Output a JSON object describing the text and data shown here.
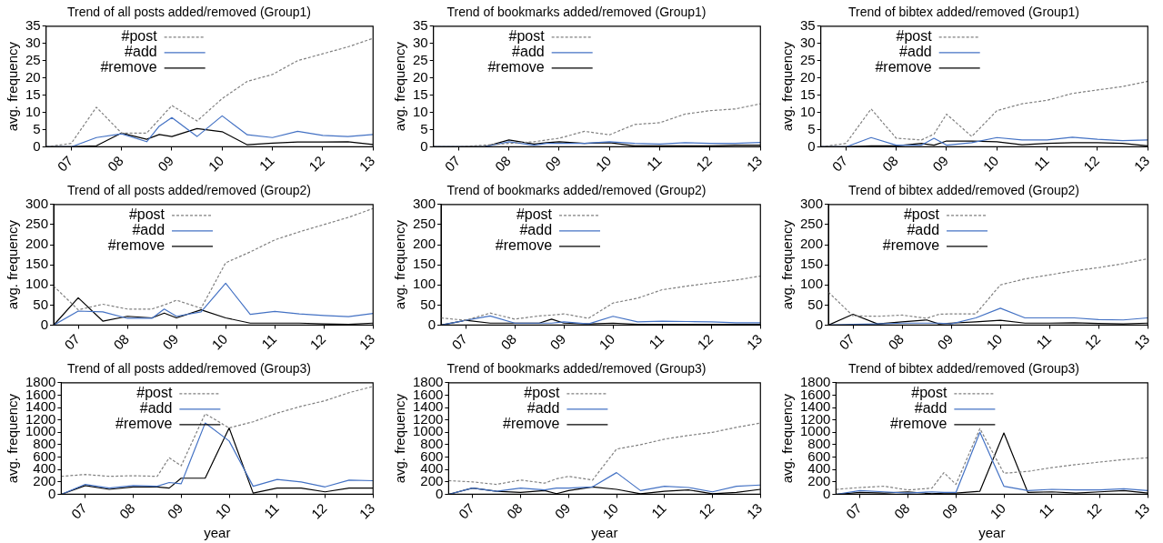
{
  "chart_data": [
    {
      "type": "line",
      "title": "Trend of all posts added/removed (Group1)",
      "ylabel": "avg. frequency",
      "legend": "top left",
      "grid": false,
      "x": [
        2006.5,
        2007,
        2007.5,
        2008,
        2008.5,
        2008.75,
        2009,
        2009.5,
        2010,
        2010.5,
        2011,
        2011.5,
        2012,
        2012.5,
        2013
      ],
      "xlim": [
        2006.5,
        2013
      ],
      "xticks": [
        {
          "value": 2007,
          "label": "07"
        },
        {
          "value": 2008,
          "label": "08"
        },
        {
          "value": 2009,
          "label": "09"
        },
        {
          "value": 2010,
          "label": "10"
        },
        {
          "value": 2011,
          "label": "11"
        },
        {
          "value": 2012,
          "label": "12"
        },
        {
          "value": 2013,
          "label": "13"
        }
      ],
      "ylim": [
        0,
        35
      ],
      "yticks": [
        0,
        5,
        10,
        15,
        20,
        25,
        30,
        35
      ],
      "series": [
        {
          "name": "#post",
          "color": "#808080",
          "line_style": "dashed",
          "values": [
            0,
            1,
            11.5,
            4,
            4,
            8,
            12,
            7.5,
            14,
            19,
            21,
            25,
            27,
            29,
            31.5
          ]
        },
        {
          "name": "#add",
          "color": "#4472c4",
          "line_style": "solid",
          "values": [
            0,
            0,
            2.7,
            3.8,
            1.5,
            6,
            8.5,
            3,
            9,
            3.5,
            2.7,
            4.5,
            3.3,
            3,
            3.6
          ]
        },
        {
          "name": "#remove",
          "color": "#000000",
          "line_style": "solid",
          "values": [
            0,
            0,
            0.3,
            4,
            2.2,
            3.6,
            3,
            5.3,
            4.4,
            0.6,
            1.1,
            1.4,
            1.4,
            1.5,
            0.7
          ]
        }
      ]
    },
    {
      "type": "line",
      "title": "Trend of bookmarks added/removed (Group1)",
      "ylabel": "avg. frequency",
      "legend": "top left",
      "grid": false,
      "x": [
        2006.5,
        2007,
        2007.5,
        2008,
        2008.5,
        2008.75,
        2009,
        2009.5,
        2010,
        2010.5,
        2011,
        2011.5,
        2012,
        2012.5,
        2013
      ],
      "xlim": [
        2006.5,
        2013
      ],
      "xticks": [
        {
          "value": 2007,
          "label": "07"
        },
        {
          "value": 2008,
          "label": "08"
        },
        {
          "value": 2009,
          "label": "09"
        },
        {
          "value": 2010,
          "label": "10"
        },
        {
          "value": 2011,
          "label": "11"
        },
        {
          "value": 2012,
          "label": "12"
        },
        {
          "value": 2013,
          "label": "13"
        }
      ],
      "ylim": [
        0,
        35
      ],
      "yticks": [
        0,
        5,
        10,
        15,
        20,
        25,
        30,
        35
      ],
      "series": [
        {
          "name": "#post",
          "color": "#808080",
          "line_style": "dashed",
          "values": [
            0,
            0,
            0.5,
            1,
            1.5,
            2,
            2.5,
            4.5,
            3.5,
            6.5,
            7,
            9.5,
            10.5,
            11,
            12.5
          ]
        },
        {
          "name": "#add",
          "color": "#4472c4",
          "line_style": "solid",
          "values": [
            0,
            0,
            0,
            1.5,
            0.5,
            1,
            1,
            1,
            1.5,
            1,
            0.8,
            1.2,
            1,
            1,
            1.3
          ]
        },
        {
          "name": "#remove",
          "color": "#000000",
          "line_style": "solid",
          "values": [
            0,
            0,
            0,
            2,
            0.8,
            1.2,
            1.5,
            1,
            1.2,
            0.3,
            0.3,
            0.3,
            0.3,
            0.5,
            0.5
          ]
        }
      ]
    },
    {
      "type": "line",
      "title": "Trend of bibtex added/removed (Group1)",
      "ylabel": "avg. frequency",
      "legend": "top left",
      "grid": false,
      "x": [
        2006.5,
        2007,
        2007.5,
        2008,
        2008.5,
        2008.75,
        2009,
        2009.5,
        2010,
        2010.5,
        2011,
        2011.5,
        2012,
        2012.5,
        2013
      ],
      "xlim": [
        2006.5,
        2013
      ],
      "xticks": [
        {
          "value": 2007,
          "label": "07"
        },
        {
          "value": 2008,
          "label": "08"
        },
        {
          "value": 2009,
          "label": "09"
        },
        {
          "value": 2010,
          "label": "10"
        },
        {
          "value": 2011,
          "label": "11"
        },
        {
          "value": 2012,
          "label": "12"
        },
        {
          "value": 2013,
          "label": "13"
        }
      ],
      "ylim": [
        0,
        35
      ],
      "yticks": [
        0,
        5,
        10,
        15,
        20,
        25,
        30,
        35
      ],
      "series": [
        {
          "name": "#post",
          "color": "#808080",
          "line_style": "dashed",
          "values": [
            0,
            1,
            11,
            2.5,
            2,
            3.7,
            9.5,
            3,
            10.5,
            12.5,
            13.5,
            15.5,
            16.5,
            17.5,
            19
          ]
        },
        {
          "name": "#add",
          "color": "#4472c4",
          "line_style": "solid",
          "values": [
            0,
            0,
            2.7,
            0.5,
            0.5,
            2.5,
            0.5,
            1.2,
            2.7,
            2,
            2,
            2.8,
            2.2,
            1.8,
            2
          ]
        },
        {
          "name": "#remove",
          "color": "#000000",
          "line_style": "solid",
          "values": [
            0,
            0,
            0.3,
            0.3,
            1,
            0.5,
            1.7,
            1.7,
            1.5,
            0.6,
            1,
            1.2,
            1.2,
            1,
            0.3
          ]
        }
      ]
    },
    {
      "type": "line",
      "title": "Trend of all posts added/removed (Group2)",
      "ylabel": "avg. frequency",
      "legend": "top left",
      "grid": false,
      "x": [
        2006.5,
        2007,
        2007.5,
        2008,
        2008.5,
        2008.75,
        2009,
        2009.5,
        2010,
        2010.5,
        2011,
        2011.5,
        2012,
        2012.5,
        2013
      ],
      "xlim": [
        2006.5,
        2013
      ],
      "xticks": [
        {
          "value": 2007,
          "label": "07"
        },
        {
          "value": 2008,
          "label": "08"
        },
        {
          "value": 2009,
          "label": "09"
        },
        {
          "value": 2010,
          "label": "10"
        },
        {
          "value": 2011,
          "label": "11"
        },
        {
          "value": 2012,
          "label": "12"
        },
        {
          "value": 2013,
          "label": "13"
        }
      ],
      "ylim": [
        0,
        300
      ],
      "yticks": [
        0,
        50,
        100,
        150,
        200,
        250,
        300
      ],
      "series": [
        {
          "name": "#post",
          "color": "#808080",
          "line_style": "dashed",
          "values": [
            97,
            38,
            52,
            40,
            40,
            50,
            62,
            42,
            155,
            182,
            212,
            232,
            250,
            268,
            290
          ]
        },
        {
          "name": "#add",
          "color": "#4472c4",
          "line_style": "solid",
          "values": [
            0,
            35,
            33,
            17,
            17,
            40,
            22,
            33,
            104,
            27,
            34,
            28,
            24,
            21,
            29
          ]
        },
        {
          "name": "#remove",
          "color": "#000000",
          "line_style": "solid",
          "values": [
            0,
            68,
            10,
            22,
            18,
            30,
            18,
            38,
            18,
            5,
            5,
            5,
            3,
            2,
            5
          ]
        }
      ]
    },
    {
      "type": "line",
      "title": "Trend of bookmarks added/removed (Group2)",
      "ylabel": "avg. frequency",
      "legend": "top left",
      "grid": false,
      "x": [
        2006.5,
        2007,
        2007.5,
        2008,
        2008.5,
        2008.75,
        2009,
        2009.5,
        2010,
        2010.5,
        2011,
        2011.5,
        2012,
        2012.5,
        2013
      ],
      "xlim": [
        2006.5,
        2013
      ],
      "xticks": [
        {
          "value": 2007,
          "label": "07"
        },
        {
          "value": 2008,
          "label": "08"
        },
        {
          "value": 2009,
          "label": "09"
        },
        {
          "value": 2010,
          "label": "10"
        },
        {
          "value": 2011,
          "label": "11"
        },
        {
          "value": 2012,
          "label": "12"
        },
        {
          "value": 2013,
          "label": "13"
        }
      ],
      "ylim": [
        0,
        300
      ],
      "yticks": [
        0,
        50,
        100,
        150,
        200,
        250,
        300
      ],
      "series": [
        {
          "name": "#post",
          "color": "#808080",
          "line_style": "dashed",
          "values": [
            18,
            12,
            30,
            15,
            23,
            25,
            28,
            17,
            55,
            67,
            88,
            97,
            105,
            112,
            122
          ]
        },
        {
          "name": "#add",
          "color": "#4472c4",
          "line_style": "solid",
          "values": [
            0,
            12,
            23,
            5,
            5,
            5,
            8,
            3,
            22,
            8,
            10,
            9,
            8,
            6,
            6
          ]
        },
        {
          "name": "#remove",
          "color": "#000000",
          "line_style": "solid",
          "values": [
            0,
            12,
            5,
            5,
            5,
            15,
            5,
            3,
            5,
            2,
            2,
            2,
            2,
            2,
            2
          ]
        }
      ]
    },
    {
      "type": "line",
      "title": "Trend of bibtex added/removed (Group2)",
      "ylabel": "avg. frequency",
      "legend": "top left",
      "grid": false,
      "x": [
        2006.5,
        2007,
        2007.5,
        2008,
        2008.5,
        2008.75,
        2009,
        2009.5,
        2010,
        2010.5,
        2011,
        2011.5,
        2012,
        2012.5,
        2013
      ],
      "xlim": [
        2006.5,
        2013
      ],
      "xticks": [
        {
          "value": 2007,
          "label": "07"
        },
        {
          "value": 2008,
          "label": "08"
        },
        {
          "value": 2009,
          "label": "09"
        },
        {
          "value": 2010,
          "label": "10"
        },
        {
          "value": 2011,
          "label": "11"
        },
        {
          "value": 2012,
          "label": "12"
        },
        {
          "value": 2013,
          "label": "13"
        }
      ],
      "ylim": [
        0,
        300
      ],
      "yticks": [
        0,
        50,
        100,
        150,
        200,
        250,
        300
      ],
      "series": [
        {
          "name": "#post",
          "color": "#808080",
          "line_style": "dashed",
          "values": [
            82,
            23,
            22,
            25,
            17,
            27,
            28,
            28,
            100,
            115,
            125,
            135,
            143,
            153,
            165
          ]
        },
        {
          "name": "#add",
          "color": "#4472c4",
          "line_style": "solid",
          "values": [
            0,
            2,
            3,
            5,
            5,
            5,
            3,
            18,
            42,
            18,
            18,
            18,
            14,
            13,
            18
          ]
        },
        {
          "name": "#remove",
          "color": "#000000",
          "line_style": "solid",
          "values": [
            0,
            27,
            3,
            8,
            13,
            3,
            5,
            8,
            12,
            5,
            5,
            6,
            4,
            3,
            5
          ]
        }
      ]
    },
    {
      "type": "line",
      "title": "Trend of all posts added/removed (Group3)",
      "xlabel": "year",
      "ylabel": "avg. frequency",
      "legend": "top left",
      "grid": false,
      "x": [
        2006.5,
        2007,
        2007.5,
        2008,
        2008.5,
        2008.75,
        2009,
        2009.5,
        2010,
        2010.5,
        2011,
        2011.5,
        2012,
        2012.5,
        2013
      ],
      "xlim": [
        2006.5,
        2013
      ],
      "xticks": [
        {
          "value": 2007,
          "label": "07"
        },
        {
          "value": 2008,
          "label": "08"
        },
        {
          "value": 2009,
          "label": "09"
        },
        {
          "value": 2010,
          "label": "10"
        },
        {
          "value": 2011,
          "label": "11"
        },
        {
          "value": 2012,
          "label": "12"
        },
        {
          "value": 2013,
          "label": "13"
        }
      ],
      "ylim": [
        0,
        1800
      ],
      "yticks": [
        0,
        200,
        400,
        600,
        800,
        1000,
        1200,
        1400,
        1600,
        1800
      ],
      "series": [
        {
          "name": "#post",
          "color": "#808080",
          "line_style": "dashed",
          "values": [
            290,
            320,
            290,
            300,
            290,
            590,
            460,
            1300,
            1070,
            1170,
            1310,
            1420,
            1510,
            1640,
            1740
          ]
        },
        {
          "name": "#add",
          "color": "#4472c4",
          "line_style": "solid",
          "values": [
            0,
            160,
            100,
            140,
            130,
            190,
            170,
            1150,
            860,
            130,
            240,
            200,
            120,
            230,
            220
          ]
        },
        {
          "name": "#remove",
          "color": "#000000",
          "line_style": "solid",
          "values": [
            0,
            140,
            80,
            120,
            120,
            100,
            260,
            260,
            1070,
            20,
            100,
            100,
            40,
            100,
            100
          ]
        }
      ]
    },
    {
      "type": "line",
      "title": "Trend of bookmarks added/removed (Group3)",
      "xlabel": "year",
      "ylabel": "avg. frequency",
      "legend": "top left",
      "grid": false,
      "x": [
        2006.5,
        2007,
        2007.5,
        2008,
        2008.5,
        2008.75,
        2009,
        2009.5,
        2010,
        2010.5,
        2011,
        2011.5,
        2012,
        2012.5,
        2013
      ],
      "xlim": [
        2006.5,
        2013
      ],
      "xticks": [
        {
          "value": 2007,
          "label": "07"
        },
        {
          "value": 2008,
          "label": "08"
        },
        {
          "value": 2009,
          "label": "09"
        },
        {
          "value": 2010,
          "label": "10"
        },
        {
          "value": 2011,
          "label": "11"
        },
        {
          "value": 2012,
          "label": "12"
        },
        {
          "value": 2013,
          "label": "13"
        }
      ],
      "ylim": [
        0,
        1800
      ],
      "yticks": [
        0,
        200,
        400,
        600,
        800,
        1000,
        1200,
        1400,
        1600,
        1800
      ],
      "series": [
        {
          "name": "#post",
          "color": "#808080",
          "line_style": "dashed",
          "values": [
            220,
            200,
            160,
            230,
            180,
            250,
            290,
            230,
            730,
            800,
            890,
            950,
            1000,
            1080,
            1150
          ]
        },
        {
          "name": "#add",
          "color": "#4472c4",
          "line_style": "solid",
          "values": [
            0,
            100,
            50,
            100,
            70,
            100,
            100,
            120,
            350,
            60,
            130,
            110,
            40,
            130,
            150
          ]
        },
        {
          "name": "#remove",
          "color": "#000000",
          "line_style": "solid",
          "values": [
            0,
            100,
            50,
            30,
            60,
            10,
            60,
            120,
            80,
            10,
            50,
            70,
            10,
            30,
            80
          ]
        }
      ]
    },
    {
      "type": "line",
      "title": "Trend of bibtex added/removed (Group3)",
      "xlabel": "year",
      "ylabel": "avg. frequency",
      "legend": "top left",
      "grid": false,
      "x": [
        2006.5,
        2007,
        2007.5,
        2008,
        2008.5,
        2008.75,
        2009,
        2009.5,
        2010,
        2010.5,
        2011,
        2011.5,
        2012,
        2012.5,
        2013
      ],
      "xlim": [
        2006.5,
        2013
      ],
      "xticks": [
        {
          "value": 2007,
          "label": "07"
        },
        {
          "value": 2008,
          "label": "08"
        },
        {
          "value": 2009,
          "label": "09"
        },
        {
          "value": 2010,
          "label": "10"
        },
        {
          "value": 2011,
          "label": "11"
        },
        {
          "value": 2012,
          "label": "12"
        },
        {
          "value": 2013,
          "label": "13"
        }
      ],
      "ylim": [
        0,
        1800
      ],
      "yticks": [
        0,
        200,
        400,
        600,
        800,
        1000,
        1200,
        1400,
        1600,
        1800
      ],
      "series": [
        {
          "name": "#post",
          "color": "#808080",
          "line_style": "dashed",
          "values": [
            80,
            110,
            130,
            70,
            100,
            350,
            160,
            1060,
            340,
            370,
            430,
            480,
            520,
            560,
            590
          ]
        },
        {
          "name": "#add",
          "color": "#4472c4",
          "line_style": "solid",
          "values": [
            0,
            60,
            40,
            20,
            40,
            30,
            30,
            1000,
            130,
            60,
            80,
            70,
            70,
            90,
            60
          ]
        },
        {
          "name": "#remove",
          "color": "#000000",
          "line_style": "solid",
          "values": [
            0,
            30,
            20,
            40,
            10,
            20,
            20,
            50,
            990,
            30,
            40,
            20,
            40,
            60,
            20
          ]
        }
      ]
    }
  ]
}
